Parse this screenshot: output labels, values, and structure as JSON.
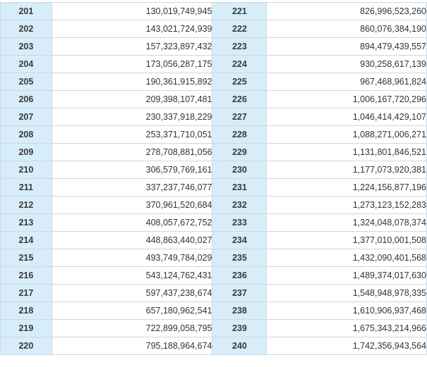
{
  "rows": [
    {
      "l1": "201",
      "v1": "130,019,749,945",
      "l2": "221",
      "v2": "826,996,523,260"
    },
    {
      "l1": "202",
      "v1": "143,021,724,939",
      "l2": "222",
      "v2": "860,076,384,190"
    },
    {
      "l1": "203",
      "v1": "157,323,897,432",
      "l2": "223",
      "v2": "894,479,439,557"
    },
    {
      "l1": "204",
      "v1": "173,056,287,175",
      "l2": "224",
      "v2": "930,258,617,139"
    },
    {
      "l1": "205",
      "v1": "190,361,915,892",
      "l2": "225",
      "v2": "967,468,961,824"
    },
    {
      "l1": "206",
      "v1": "209,398,107,481",
      "l2": "226",
      "v2": "1,006,167,720,296"
    },
    {
      "l1": "207",
      "v1": "230,337,918,229",
      "l2": "227",
      "v2": "1,046,414,429,107"
    },
    {
      "l1": "208",
      "v1": "253,371,710,051",
      "l2": "228",
      "v2": "1,088,271,006,271"
    },
    {
      "l1": "209",
      "v1": "278,708,881,056",
      "l2": "229",
      "v2": "1,131,801,846,521"
    },
    {
      "l1": "210",
      "v1": "306,579,769,161",
      "l2": "230",
      "v2": "1,177,073,920,381"
    },
    {
      "l1": "211",
      "v1": "337,237,746,077",
      "l2": "231",
      "v2": "1,224,156,877,196"
    },
    {
      "l1": "212",
      "v1": "370,961,520,684",
      "l2": "232",
      "v2": "1,273,123,152,283"
    },
    {
      "l1": "213",
      "v1": "408,057,672,752",
      "l2": "233",
      "v2": "1,324,048,078,374"
    },
    {
      "l1": "214",
      "v1": "448,863,440,027",
      "l2": "234",
      "v2": "1,377,010,001,508"
    },
    {
      "l1": "215",
      "v1": "493,749,784,029",
      "l2": "235",
      "v2": "1,432,090,401,568"
    },
    {
      "l1": "216",
      "v1": "543,124,762,431",
      "l2": "236",
      "v2": "1,489,374,017,630"
    },
    {
      "l1": "217",
      "v1": "597,437,238,674",
      "l2": "237",
      "v2": "1,548,948,978,335"
    },
    {
      "l1": "218",
      "v1": "657,180,962,541",
      "l2": "238",
      "v2": "1,610,906,937,468"
    },
    {
      "l1": "219",
      "v1": "722,899,058,795",
      "l2": "239",
      "v2": "1,675,343,214,966"
    },
    {
      "l1": "220",
      "v1": "795,188,964,674",
      "l2": "240",
      "v2": "1,742,356,943,564"
    }
  ],
  "colors": {
    "level_cell_bg": "#d7eefa",
    "border": "#cdd7df",
    "text": "#333333"
  }
}
